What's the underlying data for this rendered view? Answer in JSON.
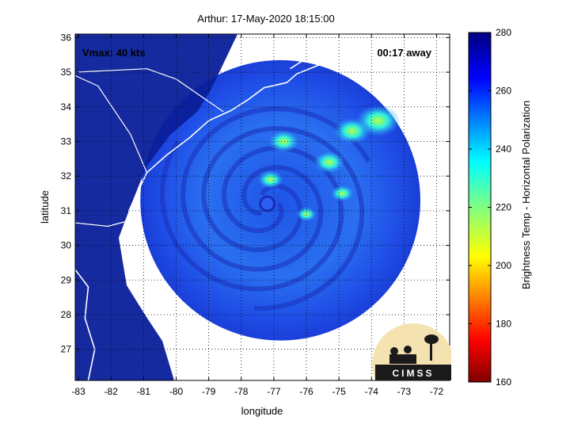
{
  "chart_data": {
    "type": "heatmap",
    "title": "Arthur: 17-May-2020 18:15:00",
    "xlabel": "longitude",
    "ylabel": "latitude",
    "xlim": [
      -83.1,
      -71.6
    ],
    "ylim": [
      26.1,
      36.1
    ],
    "xticks": [
      -83,
      -82,
      -81,
      -80,
      -79,
      -78,
      -77,
      -76,
      -75,
      -74,
      -73,
      -72
    ],
    "yticks": [
      27,
      28,
      29,
      30,
      31,
      32,
      33,
      34,
      35,
      36
    ],
    "grid": true,
    "annotations": {
      "vmax": "Vmax: 40 kts",
      "time_away": "00:17 away"
    },
    "colorbar": {
      "label": "Brightness Temp - Horizontal Polarization",
      "range": [
        160,
        280
      ],
      "ticks": [
        160,
        180,
        200,
        220,
        240,
        260,
        280
      ],
      "colormap": "jet"
    },
    "storm_center": {
      "lon": -77.2,
      "lat": 31.2
    },
    "swath_center": {
      "lon": -76.8,
      "lat": 31.3
    },
    "swath_radius_deg": 4.3,
    "cold_cells": [
      {
        "lon": -73.8,
        "lat": 33.6,
        "temp": 222
      },
      {
        "lon": -74.6,
        "lat": 33.3,
        "temp": 228
      },
      {
        "lon": -76.7,
        "lat": 33.0,
        "temp": 232
      },
      {
        "lon": -75.3,
        "lat": 32.4,
        "temp": 232
      },
      {
        "lon": -77.1,
        "lat": 31.9,
        "temp": 236
      },
      {
        "lon": -74.9,
        "lat": 31.5,
        "temp": 238
      },
      {
        "lon": -76.0,
        "lat": 30.9,
        "temp": 240
      }
    ],
    "logo": "CIMSS"
  }
}
